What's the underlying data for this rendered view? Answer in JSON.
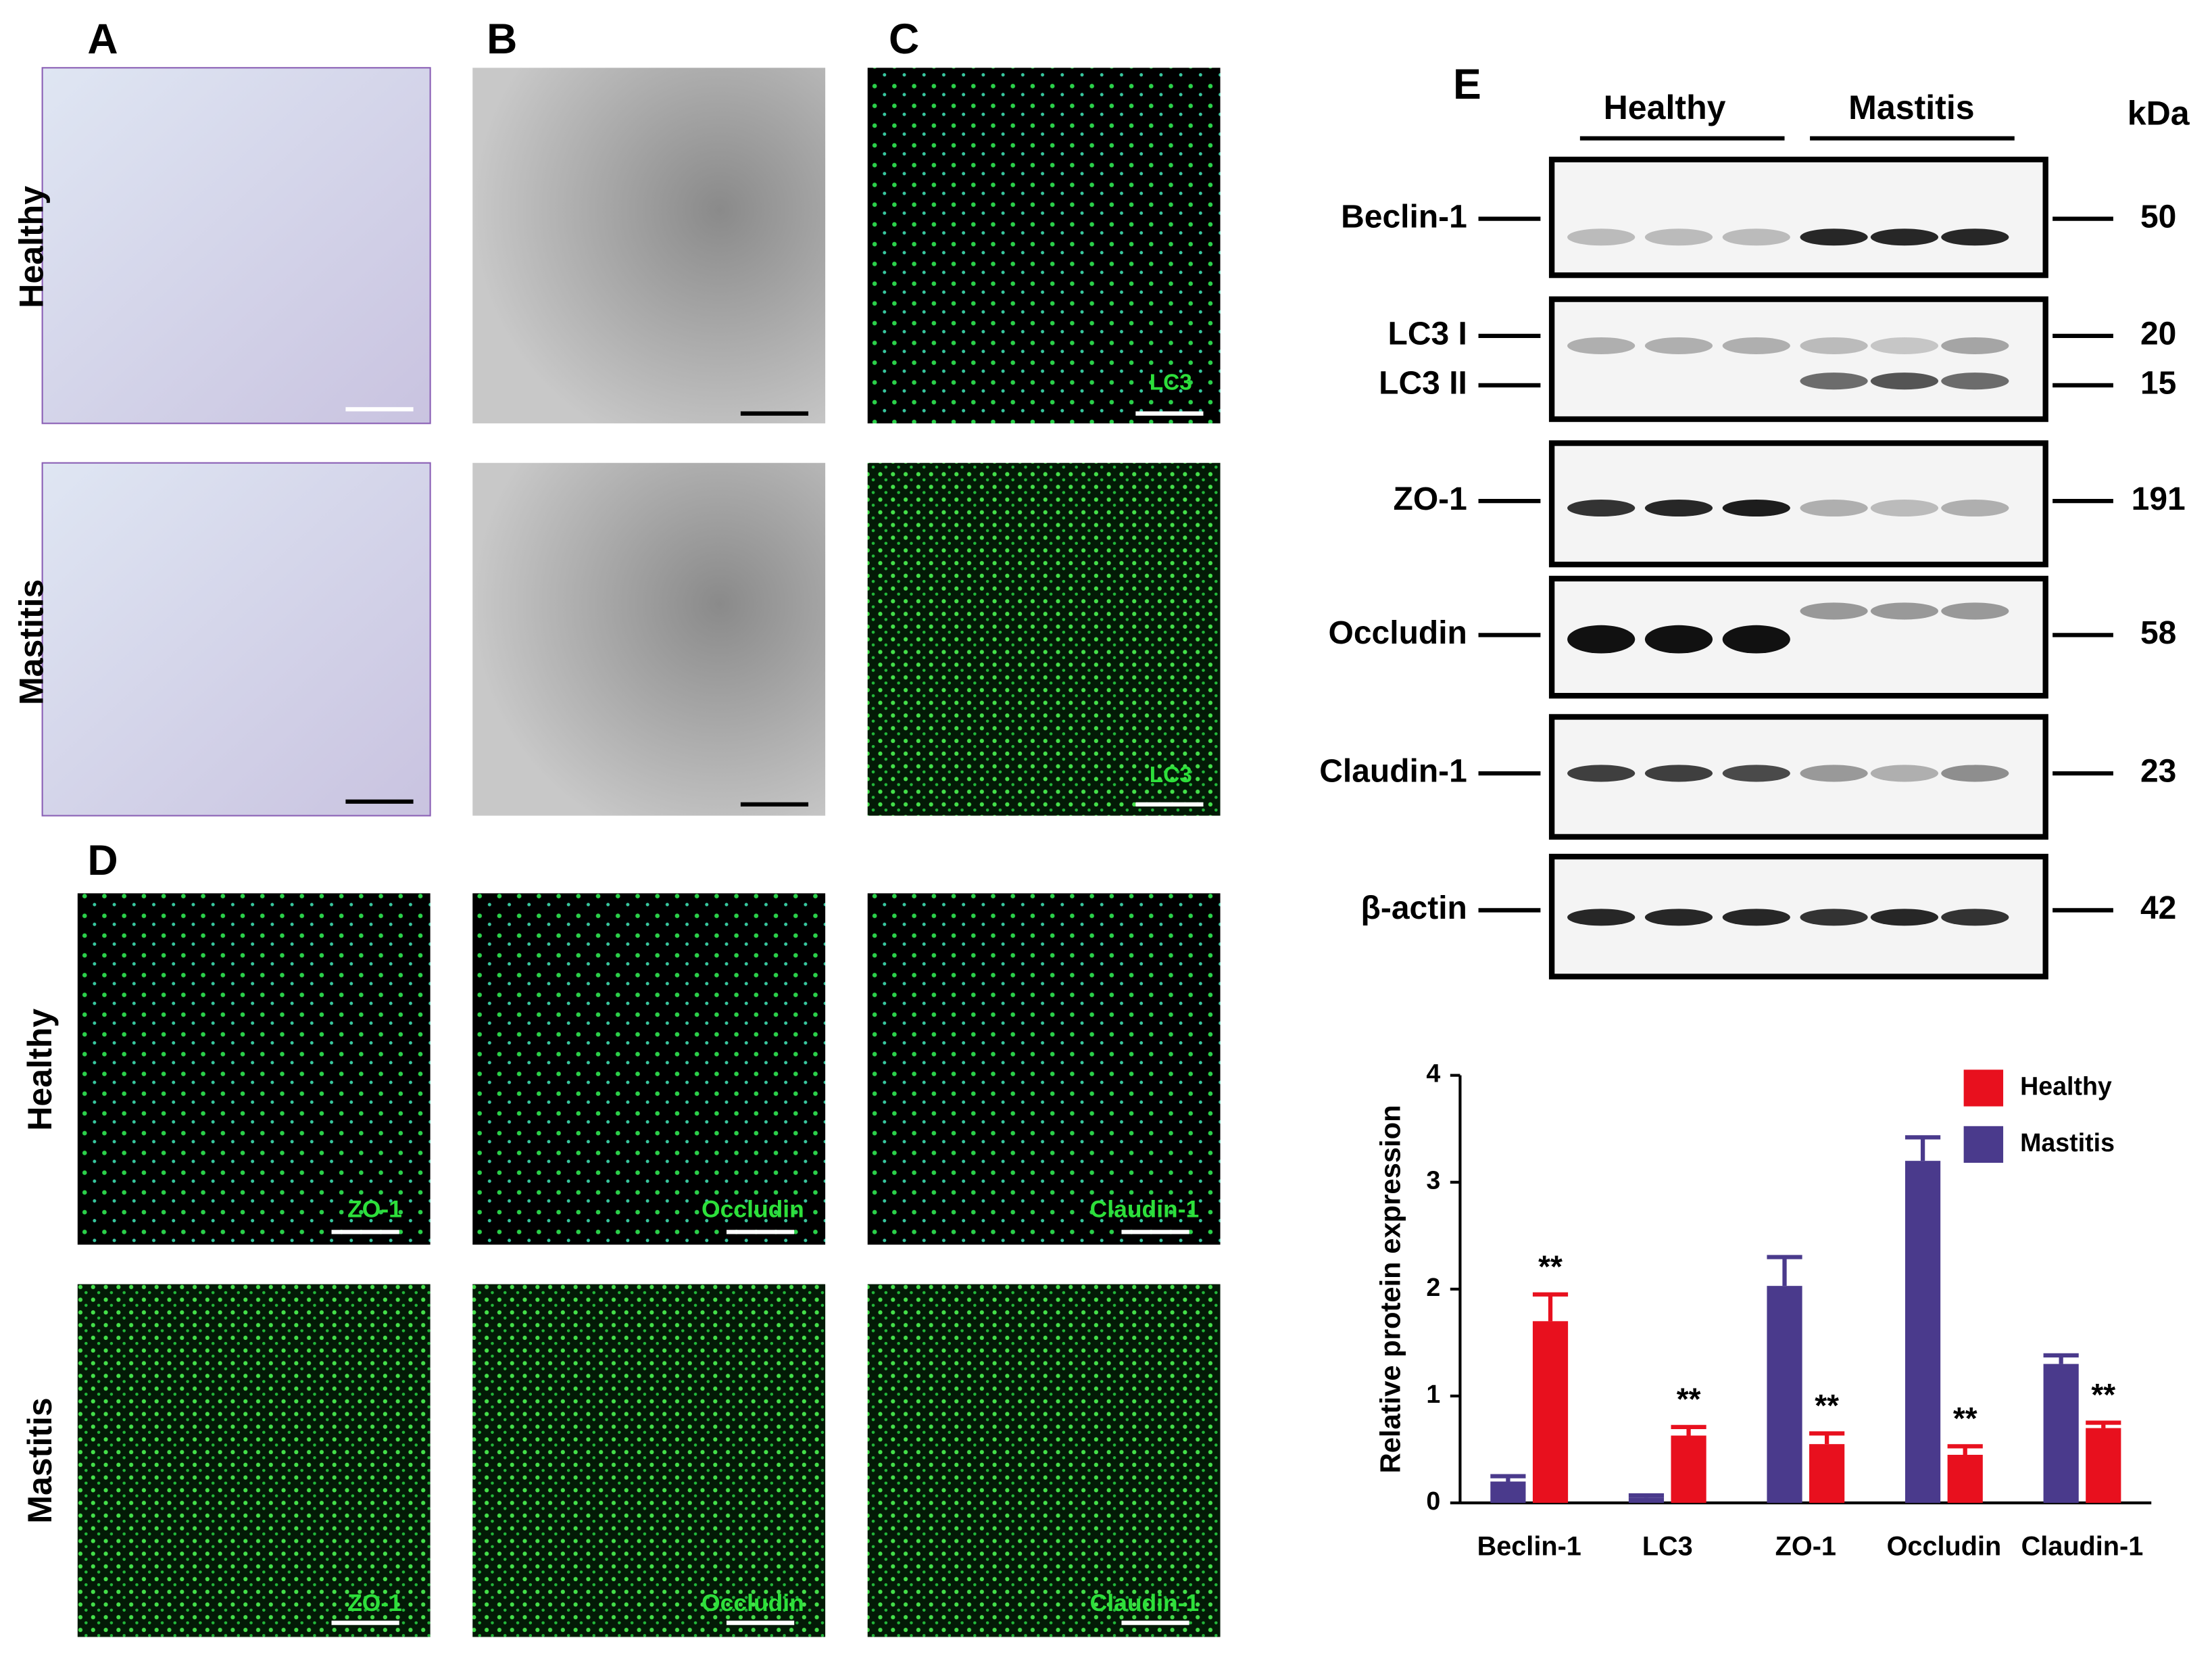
{
  "panel_letters": [
    "A",
    "B",
    "C",
    "D",
    "E"
  ],
  "top_rows": [
    "Healthy",
    "Mastitis"
  ],
  "c_labels": [
    "LC3",
    "LC3"
  ],
  "d_rows": [
    "Healthy",
    "Mastitis"
  ],
  "d_labels": [
    [
      "ZO-1",
      "Occludin",
      "Claudin-1"
    ],
    [
      "ZO-1",
      "Occludin",
      "Claudin-1"
    ]
  ],
  "blot": {
    "groups": [
      "Healthy",
      "Mastitis"
    ],
    "unit": "kDa",
    "rows": [
      {
        "labels": [
          "Beclin-1"
        ],
        "kda": [
          "50"
        ]
      },
      {
        "labels": [
          "LC3 I",
          "LC3 II"
        ],
        "kda": [
          "20",
          "15"
        ]
      },
      {
        "labels": [
          "ZO-1"
        ],
        "kda": [
          "191"
        ]
      },
      {
        "labels": [
          "Occludin"
        ],
        "kda": [
          "58"
        ]
      },
      {
        "labels": [
          "Claudin-1"
        ],
        "kda": [
          "23"
        ]
      },
      {
        "labels": [
          "β-actin"
        ],
        "kda": [
          "42"
        ]
      }
    ]
  },
  "chart_data": {
    "type": "bar",
    "y_label": "Relative protein expression",
    "categories": [
      "Beclin-1",
      "LC3",
      "ZO-1",
      "Occludin",
      "Claudin-1"
    ],
    "series": [
      {
        "name": "Healthy",
        "color": "#e8101e",
        "values": [
          1.7,
          0.63,
          0.55,
          0.45,
          0.7
        ],
        "errors": [
          0.25,
          0.08,
          0.1,
          0.08,
          0.05
        ]
      },
      {
        "name": "Mastitis",
        "color": "#4a3a8c",
        "values": [
          0.2,
          0.05,
          2.03,
          3.2,
          1.3
        ],
        "errors": [
          0.05,
          0.02,
          0.27,
          0.22,
          0.08
        ]
      }
    ],
    "annotations": [
      "**",
      "**",
      "**",
      "**",
      "**"
    ],
    "ylim": [
      0,
      4
    ],
    "yticks": [
      0,
      1,
      2,
      3,
      4
    ]
  }
}
